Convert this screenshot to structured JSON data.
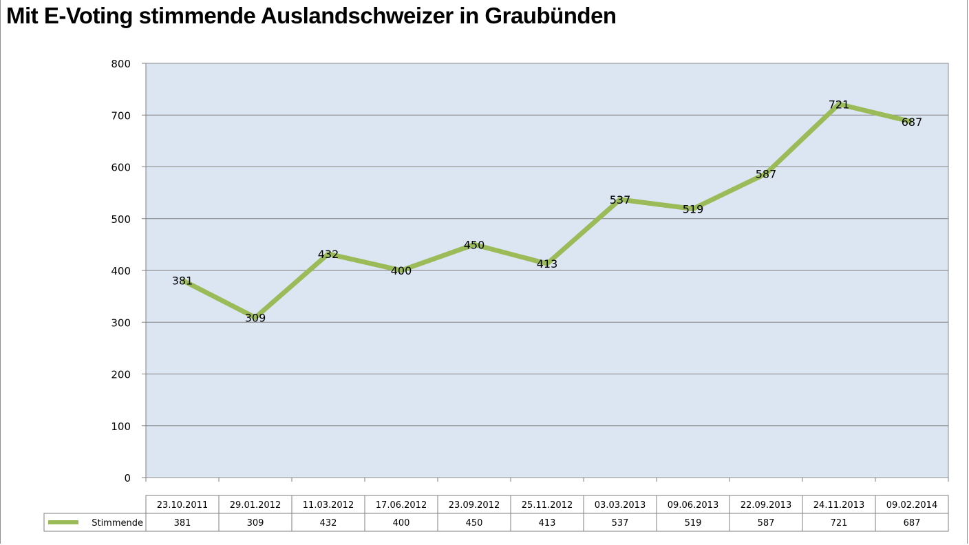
{
  "chart_data": {
    "type": "line",
    "title": "Mit E-Voting stimmende Auslandschweizer in Graubünden",
    "xlabel": "",
    "ylabel": "",
    "ylim": [
      0,
      800
    ],
    "yticks": [
      0,
      100,
      200,
      300,
      400,
      500,
      600,
      700,
      800
    ],
    "grid": true,
    "categories": [
      "23.10.2011",
      "29.01.2012",
      "11.03.2012",
      "17.06.2012",
      "23.09.2012",
      "25.11.2012",
      "03.03.2013",
      "09.06.2013",
      "22.09.2013",
      "24.11.2013",
      "09.02.2014"
    ],
    "series": [
      {
        "name": "Stimmende",
        "values": [
          381,
          309,
          432,
          400,
          450,
          413,
          537,
          519,
          587,
          721,
          687
        ],
        "color": "#9bbb59"
      }
    ],
    "plot_background": "#dce6f2",
    "data_table": true
  }
}
